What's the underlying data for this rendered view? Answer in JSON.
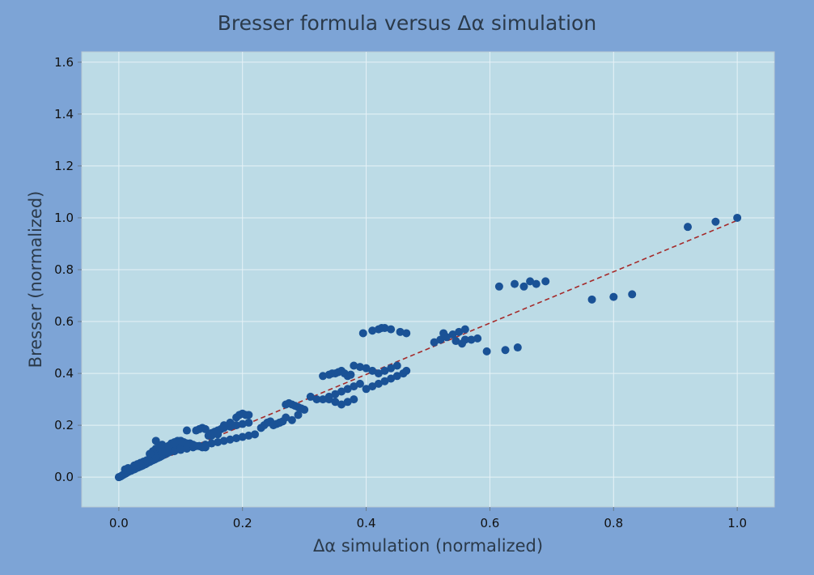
{
  "chart_data": {
    "type": "scatter",
    "title": "Bresser formula versus Δα simulation",
    "xlabel": "Δα simulation (normalized)",
    "ylabel": "Bresser (normalized)",
    "xlim": [
      -0.06,
      1.06
    ],
    "ylim": [
      -0.115,
      1.64
    ],
    "xticks": [
      "0.0",
      "0.2",
      "0.4",
      "0.6",
      "0.8",
      "1.0"
    ],
    "yticks": [
      "0.0",
      "0.2",
      "0.4",
      "0.6",
      "0.8",
      "1.0",
      "1.2",
      "1.4",
      "1.6"
    ],
    "grid": true,
    "colors": {
      "background": "#7da4d6",
      "plot_area": "#bcdbe6",
      "points": "#1a5296",
      "fit_line": "#a52a2a",
      "grid": "#e6f2f7"
    },
    "fit_line": {
      "style": "dashed",
      "x": [
        0.0,
        1.0
      ],
      "y": [
        0.0,
        0.99
      ]
    },
    "points": {
      "x": [
        0.0,
        0.003,
        0.005,
        0.007,
        0.009,
        0.011,
        0.013,
        0.015,
        0.017,
        0.02,
        0.022,
        0.025,
        0.027,
        0.03,
        0.032,
        0.035,
        0.038,
        0.04,
        0.043,
        0.045,
        0.047,
        0.05,
        0.052,
        0.055,
        0.058,
        0.06,
        0.063,
        0.066,
        0.068,
        0.07,
        0.073,
        0.075,
        0.078,
        0.08,
        0.083,
        0.086,
        0.09,
        0.093,
        0.096,
        0.1,
        0.01,
        0.015,
        0.025,
        0.03,
        0.035,
        0.04,
        0.045,
        0.05,
        0.055,
        0.06,
        0.065,
        0.07,
        0.08,
        0.09,
        0.1,
        0.11,
        0.12,
        0.13,
        0.14,
        0.15,
        0.16,
        0.17,
        0.18,
        0.19,
        0.2,
        0.21,
        0.22,
        0.05,
        0.055,
        0.06,
        0.065,
        0.07,
        0.085,
        0.09,
        0.095,
        0.1,
        0.105,
        0.11,
        0.115,
        0.12,
        0.125,
        0.13,
        0.135,
        0.14,
        0.145,
        0.15,
        0.155,
        0.16,
        0.165,
        0.17,
        0.18,
        0.19,
        0.2,
        0.21,
        0.06,
        0.075,
        0.08,
        0.09,
        0.1,
        0.11,
        0.125,
        0.13,
        0.135,
        0.14,
        0.15,
        0.16,
        0.17,
        0.18,
        0.185,
        0.19,
        0.195,
        0.2,
        0.205,
        0.21,
        0.23,
        0.235,
        0.24,
        0.245,
        0.25,
        0.255,
        0.26,
        0.265,
        0.27,
        0.275,
        0.28,
        0.285,
        0.29,
        0.295,
        0.26,
        0.27,
        0.28,
        0.29,
        0.3,
        0.31,
        0.32,
        0.33,
        0.34,
        0.35,
        0.36,
        0.37,
        0.38,
        0.39,
        0.33,
        0.34,
        0.345,
        0.35,
        0.355,
        0.36,
        0.365,
        0.37,
        0.375,
        0.34,
        0.35,
        0.36,
        0.37,
        0.38,
        0.4,
        0.41,
        0.42,
        0.43,
        0.44,
        0.45,
        0.46,
        0.38,
        0.39,
        0.4,
        0.41,
        0.42,
        0.43,
        0.44,
        0.45,
        0.46,
        0.465,
        0.395,
        0.41,
        0.42,
        0.425,
        0.43,
        0.44,
        0.455,
        0.465,
        0.51,
        0.52,
        0.53,
        0.54,
        0.55,
        0.56,
        0.57,
        0.58,
        0.525,
        0.545,
        0.555,
        0.56,
        0.595,
        0.625,
        0.645,
        0.615,
        0.64,
        0.655,
        0.665,
        0.675,
        0.69,
        0.765,
        0.8,
        0.83,
        0.92,
        0.965,
        1.0
      ],
      "y": [
        0.0,
        0.003,
        0.006,
        0.009,
        0.012,
        0.014,
        0.017,
        0.02,
        0.022,
        0.025,
        0.028,
        0.03,
        0.033,
        0.036,
        0.038,
        0.041,
        0.044,
        0.047,
        0.05,
        0.053,
        0.056,
        0.059,
        0.062,
        0.065,
        0.068,
        0.071,
        0.074,
        0.077,
        0.08,
        0.083,
        0.086,
        0.089,
        0.092,
        0.095,
        0.098,
        0.101,
        0.104,
        0.107,
        0.11,
        0.113,
        0.03,
        0.035,
        0.045,
        0.05,
        0.055,
        0.06,
        0.065,
        0.07,
        0.075,
        0.08,
        0.085,
        0.09,
        0.095,
        0.1,
        0.105,
        0.11,
        0.115,
        0.12,
        0.125,
        0.13,
        0.135,
        0.14,
        0.145,
        0.15,
        0.155,
        0.16,
        0.165,
        0.09,
        0.1,
        0.11,
        0.115,
        0.125,
        0.13,
        0.135,
        0.14,
        0.14,
        0.135,
        0.13,
        0.13,
        0.125,
        0.12,
        0.12,
        0.115,
        0.115,
        0.16,
        0.17,
        0.175,
        0.18,
        0.185,
        0.19,
        0.195,
        0.2,
        0.205,
        0.21,
        0.14,
        0.1,
        0.12,
        0.13,
        0.14,
        0.18,
        0.18,
        0.185,
        0.19,
        0.185,
        0.16,
        0.165,
        0.2,
        0.21,
        0.2,
        0.23,
        0.24,
        0.245,
        0.24,
        0.24,
        0.19,
        0.2,
        0.21,
        0.215,
        0.2,
        0.205,
        0.21,
        0.215,
        0.28,
        0.285,
        0.28,
        0.275,
        0.27,
        0.265,
        0.21,
        0.23,
        0.22,
        0.24,
        0.26,
        0.31,
        0.3,
        0.3,
        0.31,
        0.32,
        0.33,
        0.34,
        0.35,
        0.36,
        0.39,
        0.395,
        0.4,
        0.4,
        0.405,
        0.41,
        0.4,
        0.39,
        0.395,
        0.3,
        0.29,
        0.28,
        0.29,
        0.3,
        0.34,
        0.35,
        0.36,
        0.37,
        0.38,
        0.39,
        0.4,
        0.43,
        0.425,
        0.42,
        0.41,
        0.4,
        0.41,
        0.42,
        0.43,
        0.4,
        0.41,
        0.555,
        0.565,
        0.57,
        0.575,
        0.575,
        0.57,
        0.56,
        0.555,
        0.52,
        0.53,
        0.54,
        0.55,
        0.56,
        0.57,
        0.53,
        0.535,
        0.555,
        0.525,
        0.515,
        0.53,
        0.485,
        0.49,
        0.5,
        0.735,
        0.745,
        0.735,
        0.755,
        0.745,
        0.755,
        0.685,
        0.695,
        0.705,
        0.965,
        0.985,
        1.0
      ]
    }
  }
}
